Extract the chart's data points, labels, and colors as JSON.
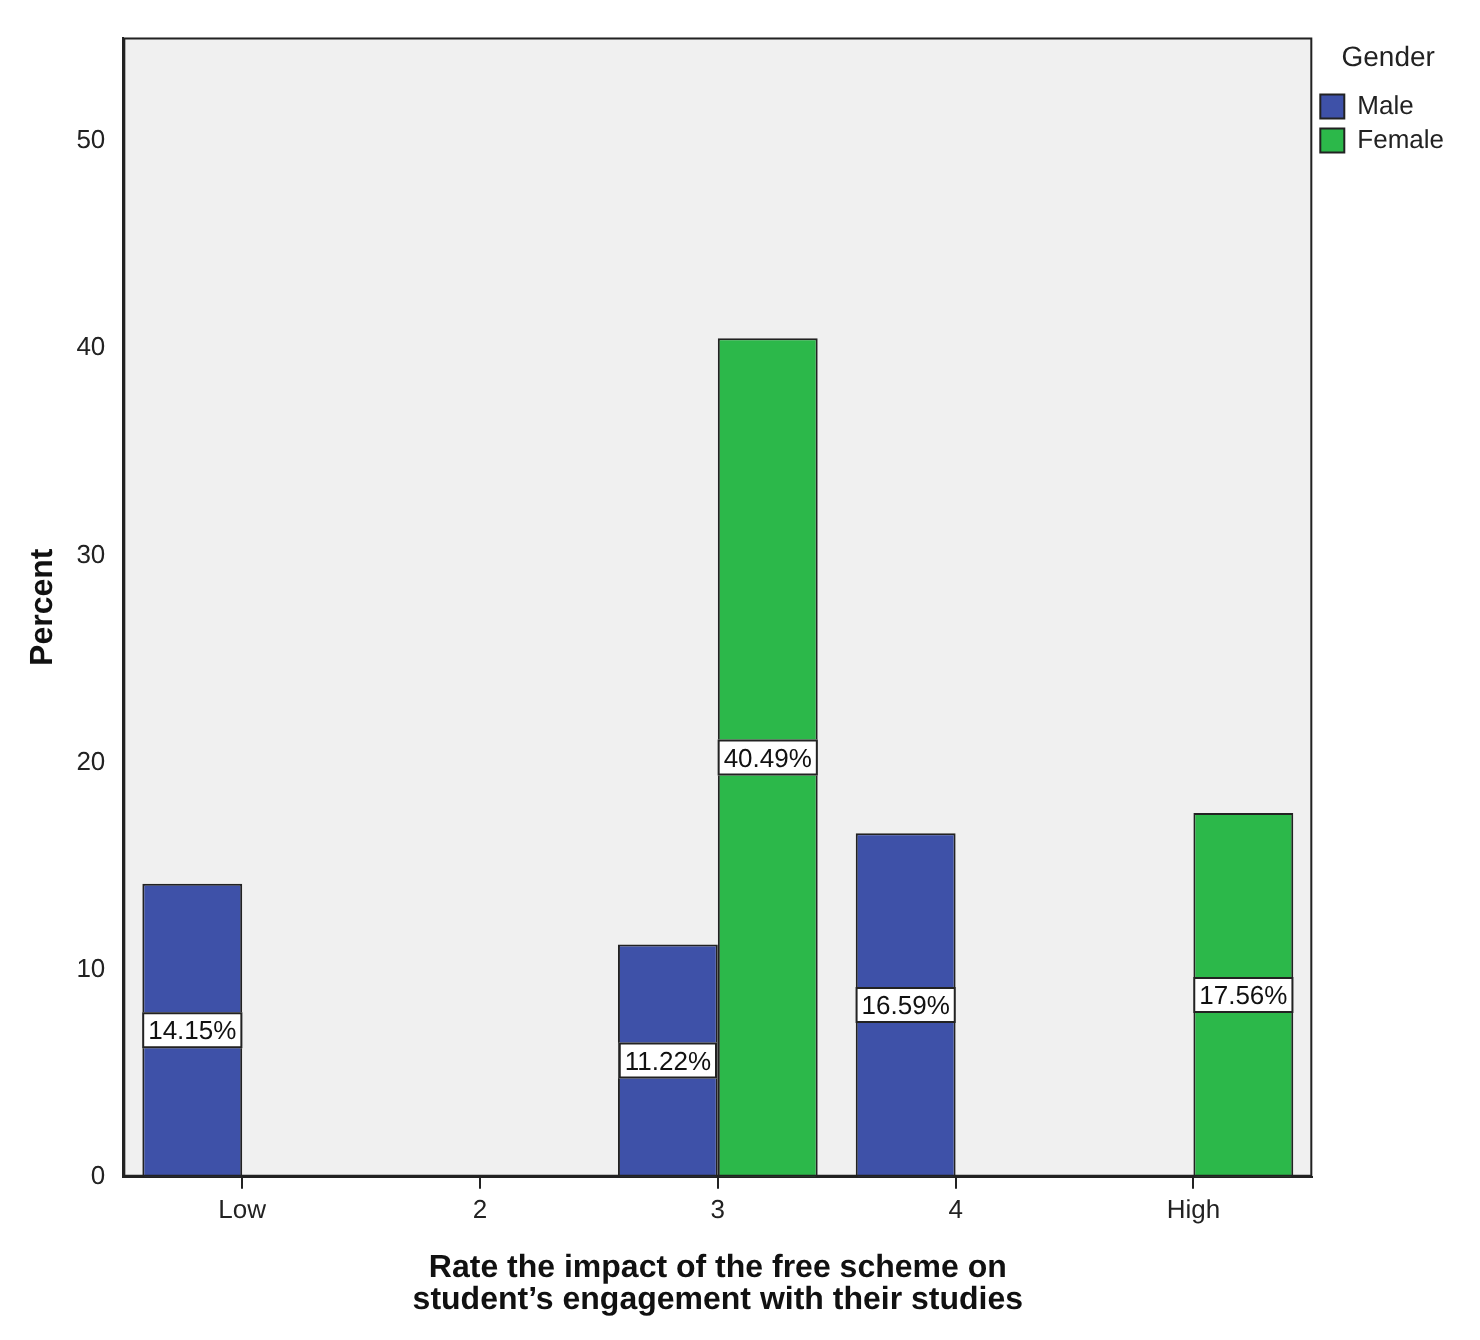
{
  "chart_data": {
    "type": "bar",
    "xlabel": "Rate the impact of the free scheme on student’s engagement with their studies",
    "ylabel": "Percent",
    "legend_title": "Gender",
    "categories": [
      "Low",
      "2",
      "3",
      "4",
      "High"
    ],
    "series": [
      {
        "name": "Male",
        "color": "#3e51a8",
        "values": [
          14.15,
          null,
          11.22,
          16.59,
          null
        ],
        "value_labels": [
          "14.15%",
          null,
          "11.22%",
          "16.59%",
          null
        ]
      },
      {
        "name": "Female",
        "color": "#2cb84a",
        "values": [
          null,
          null,
          40.49,
          null,
          17.56
        ],
        "value_labels": [
          null,
          null,
          "40.49%",
          null,
          "17.56%"
        ]
      }
    ],
    "ylim": [
      0,
      55
    ],
    "yticks": [
      0,
      10,
      20,
      30,
      40,
      50
    ],
    "grid": false,
    "legend": "top right"
  }
}
